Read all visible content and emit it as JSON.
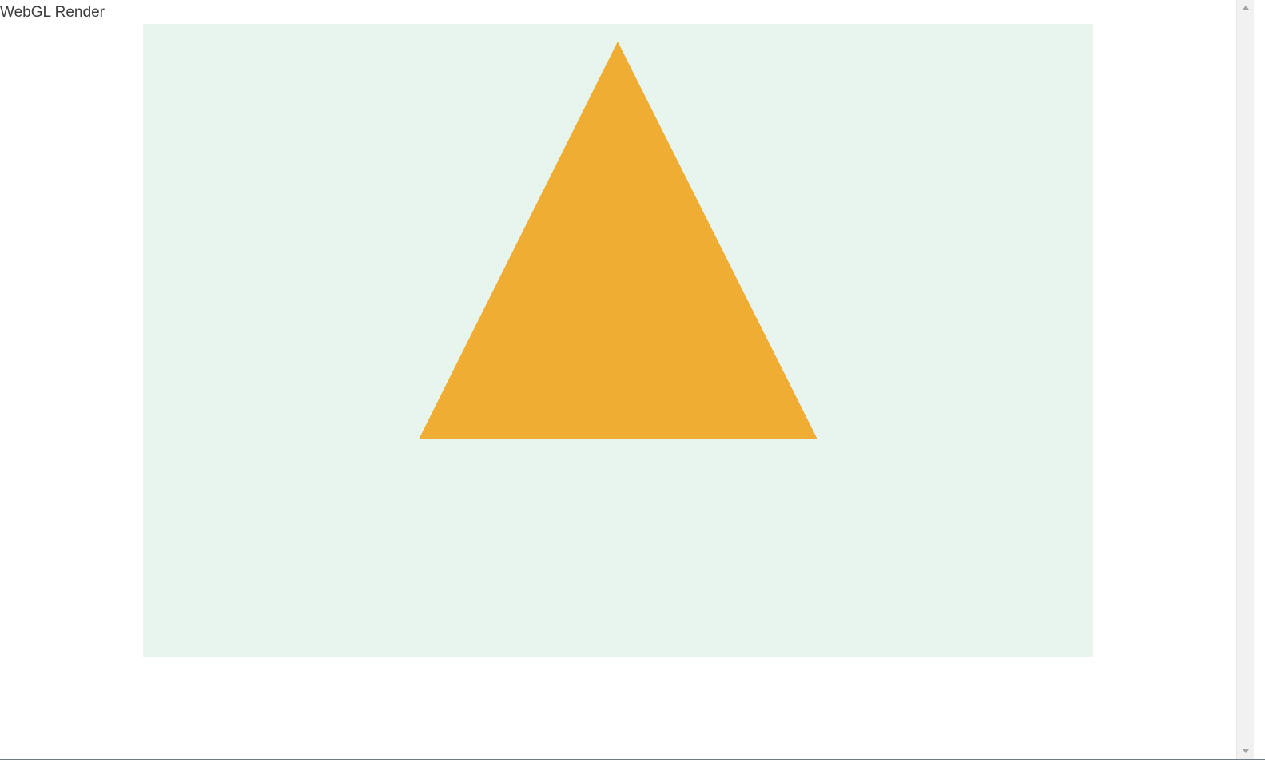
{
  "page": {
    "title": "WebGL Render"
  },
  "canvas": {
    "background_color": "#e8f5ee",
    "shape": {
      "type": "triangle",
      "fill_color": "#f0ad33"
    }
  },
  "scrollbar": {
    "up_icon": "triangle-up-icon",
    "down_icon": "triangle-down-icon"
  }
}
